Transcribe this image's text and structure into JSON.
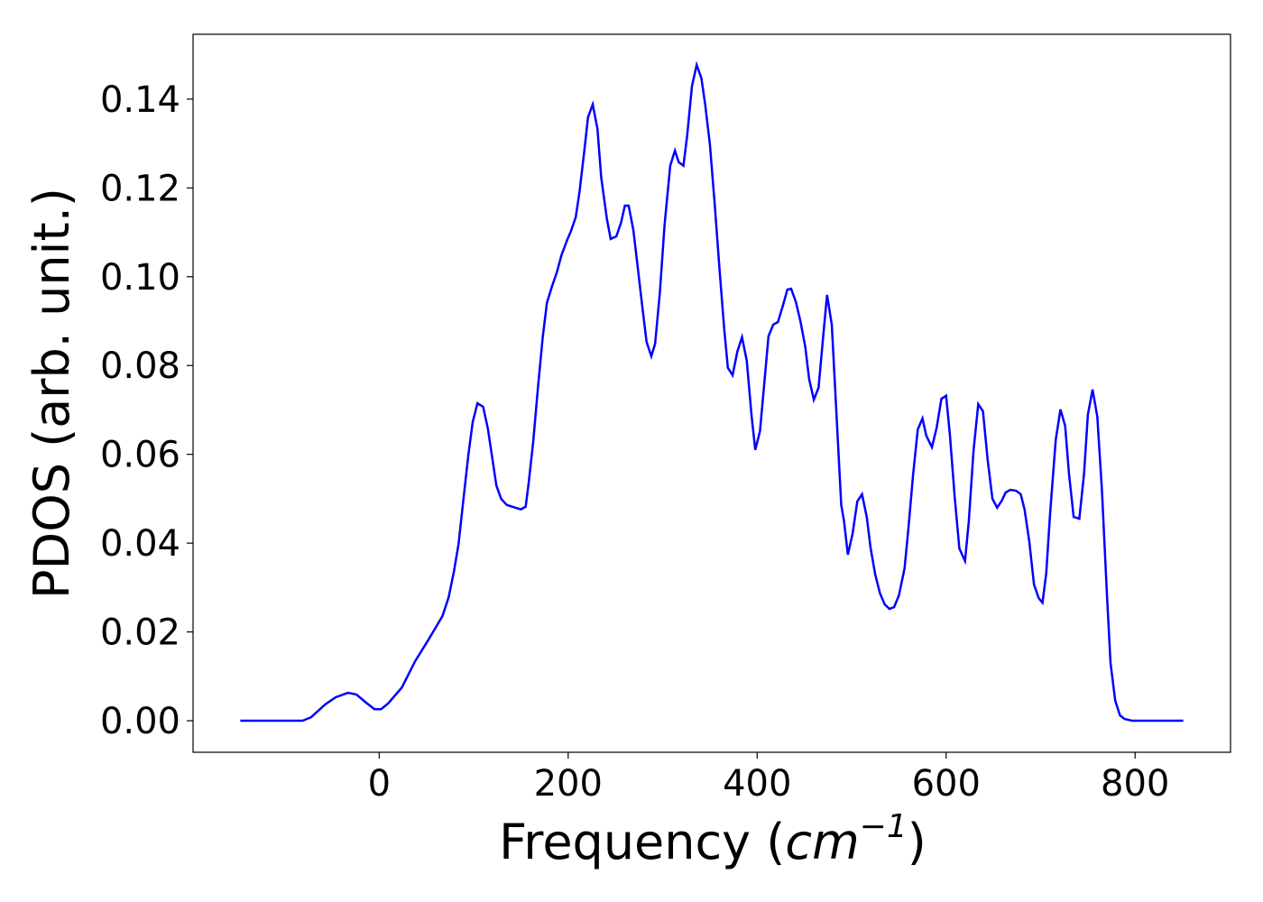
{
  "chart_data": {
    "type": "line",
    "x_label": {
      "text": "Frequency (",
      "math": "cm",
      "sup": "−1",
      "close": ")"
    },
    "y_label": "PDOS (arb. unit.)",
    "xlim": [
      -197,
      901
    ],
    "ylim": [
      -0.0071,
      0.1546
    ],
    "xticks": [
      0,
      200,
      400,
      600,
      800
    ],
    "yticks": [
      {
        "value": 0,
        "label": "0.00"
      },
      0.02,
      0.04,
      0.06,
      0.08,
      {
        "value": 0.1,
        "label": "0.10"
      },
      0.12,
      0.14
    ],
    "series": [
      {
        "color": "#0000ff",
        "x": [
          -147,
          -81,
          -72,
          -57,
          -46,
          -33,
          -24,
          -14,
          -5,
          2,
          9.5,
          24,
          38,
          52,
          59,
          67,
          73.5,
          79,
          84,
          89,
          94.5,
          99,
          104,
          110,
          115,
          120,
          124,
          129,
          135,
          144,
          150,
          155,
          158,
          163,
          168,
          173,
          177.5,
          183,
          188,
          193,
          199,
          203,
          208,
          212,
          217,
          221,
          226,
          231,
          235,
          241,
          245,
          251,
          256,
          260,
          264,
          269,
          274,
          279,
          283,
          288,
          292,
          297,
          302,
          308,
          313,
          317,
          322,
          326,
          331,
          336,
          341,
          345,
          350,
          355,
          360,
          365,
          369,
          374,
          379,
          384,
          389,
          394,
          398,
          403,
          408,
          412,
          417,
          422,
          427,
          432,
          436,
          441,
          446,
          451,
          455,
          460,
          465,
          470,
          474,
          479,
          484,
          489,
          492,
          496,
          501,
          506,
          511,
          516,
          520,
          525,
          530,
          535,
          540,
          545,
          550,
          556,
          560,
          565,
          570,
          575,
          579,
          585,
          590,
          595,
          600,
          604,
          609,
          614,
          620,
          624,
          629,
          634,
          639,
          644,
          649,
          654,
          659,
          663,
          668,
          674,
          679,
          683,
          688,
          693,
          698,
          702,
          706,
          710,
          716,
          721,
          726,
          730,
          735,
          741,
          746,
          750,
          755,
          760,
          765,
          770,
          774,
          779,
          784,
          789,
          797,
          851
        ],
        "values": [
          0,
          0,
          0.0008,
          0.0037,
          0.0053,
          0.0063,
          0.0059,
          0.0041,
          0.0026,
          0.0026,
          0.0039,
          0.0075,
          0.0134,
          0.0182,
          0.0207,
          0.0236,
          0.0278,
          0.0335,
          0.0398,
          0.0496,
          0.0601,
          0.0673,
          0.0715,
          0.0707,
          0.0658,
          0.0587,
          0.053,
          0.05,
          0.0486,
          0.048,
          0.0476,
          0.0482,
          0.0532,
          0.0628,
          0.075,
          0.0862,
          0.0941,
          0.0979,
          0.101,
          0.1049,
          0.1083,
          0.1103,
          0.1134,
          0.1191,
          0.1282,
          0.1359,
          0.1388,
          0.1333,
          0.1223,
          0.113,
          0.1085,
          0.1091,
          0.1122,
          0.116,
          0.116,
          0.1105,
          0.1014,
          0.0923,
          0.0853,
          0.0821,
          0.0849,
          0.0963,
          0.1116,
          0.125,
          0.1284,
          0.1258,
          0.125,
          0.1319,
          0.1429,
          0.1477,
          0.1447,
          0.1388,
          0.1298,
          0.1166,
          0.1022,
          0.0886,
          0.0795,
          0.0778,
          0.0831,
          0.0864,
          0.0811,
          0.0689,
          0.061,
          0.0652,
          0.077,
          0.0866,
          0.0892,
          0.0898,
          0.0933,
          0.0971,
          0.0973,
          0.0943,
          0.0898,
          0.0841,
          0.077,
          0.0723,
          0.075,
          0.0868,
          0.0959,
          0.0892,
          0.0689,
          0.0486,
          0.0449,
          0.0374,
          0.0421,
          0.0494,
          0.051,
          0.0459,
          0.039,
          0.0329,
          0.0287,
          0.0262,
          0.0252,
          0.0256,
          0.0282,
          0.0343,
          0.0431,
          0.0553,
          0.0656,
          0.0681,
          0.0642,
          0.0616,
          0.066,
          0.0725,
          0.0732,
          0.0644,
          0.0506,
          0.0388,
          0.036,
          0.0449,
          0.0608,
          0.0713,
          0.0697,
          0.0587,
          0.05,
          0.048,
          0.0496,
          0.0514,
          0.052,
          0.0518,
          0.051,
          0.0476,
          0.0404,
          0.0307,
          0.0276,
          0.0266,
          0.0333,
          0.0465,
          0.0632,
          0.0701,
          0.0664,
          0.0557,
          0.0459,
          0.0455,
          0.0557,
          0.0689,
          0.0746,
          0.0685,
          0.0516,
          0.0293,
          0.013,
          0.0045,
          0.0012,
          0.0004,
          0,
          0
        ]
      }
    ]
  }
}
